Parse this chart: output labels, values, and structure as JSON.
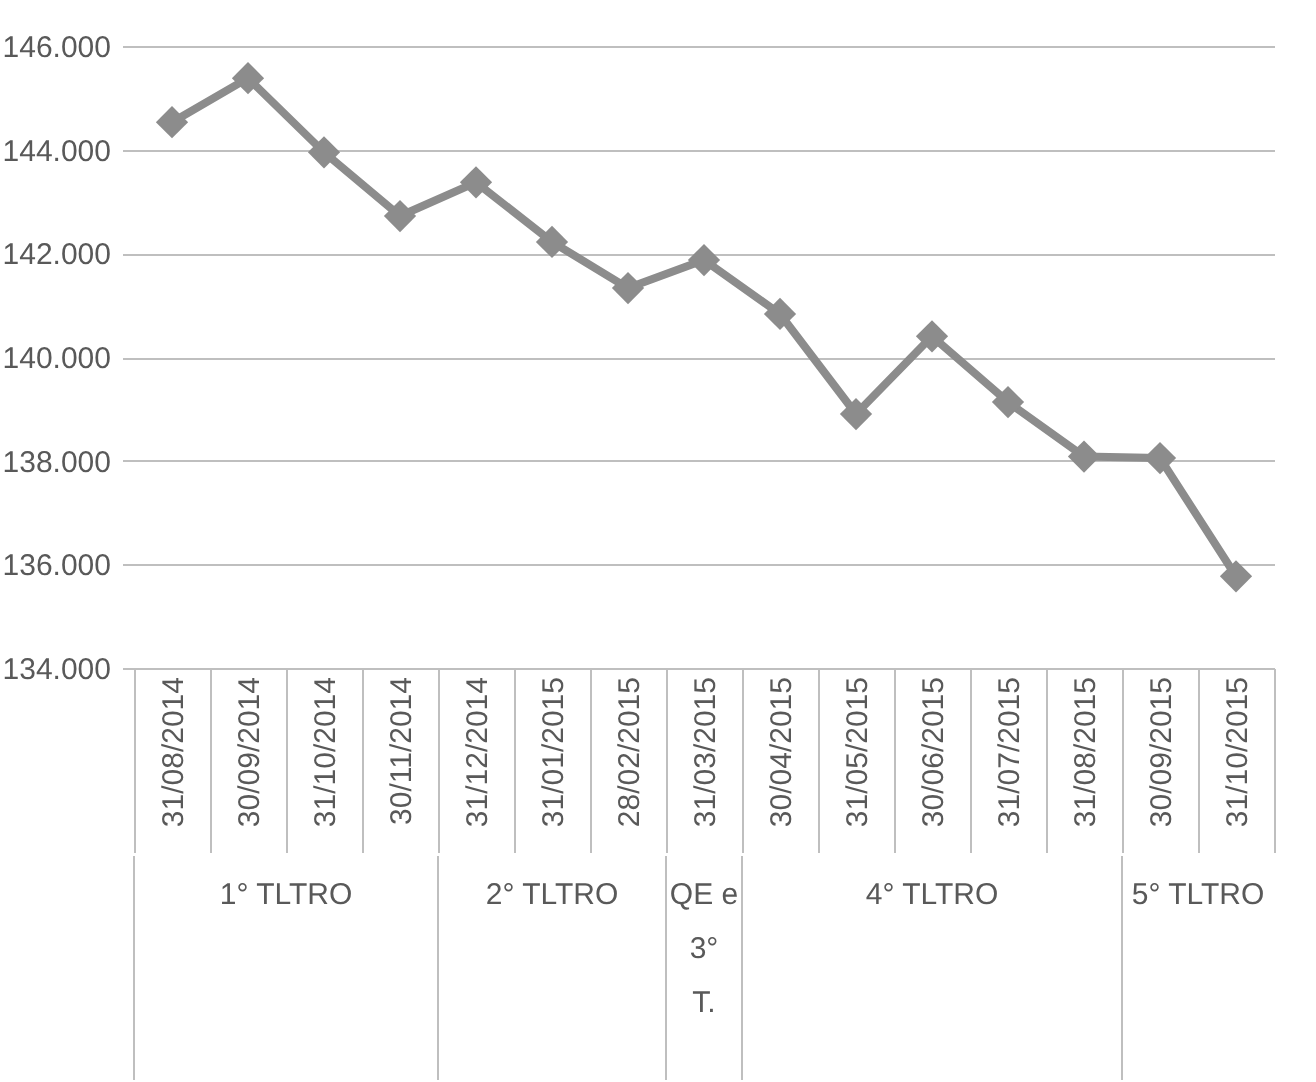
{
  "chart_data": {
    "type": "line",
    "categories": [
      "31/08/2014",
      "30/09/2014",
      "31/10/2014",
      "30/11/2014",
      "31/12/2014",
      "31/01/2015",
      "28/02/2015",
      "31/03/2015",
      "30/04/2015",
      "31/05/2015",
      "30/06/2015",
      "31/07/2015",
      "31/08/2015",
      "30/09/2015",
      "31/10/2015"
    ],
    "series": [
      {
        "color": "#8c8c8c",
        "values": [
          144530,
          145380,
          143950,
          142720,
          143370,
          142220,
          141330,
          141870,
          140830,
          138900,
          140400,
          139130,
          138080,
          138050,
          135770
        ]
      }
    ],
    "ylim": [
      134000,
      146000
    ],
    "yticks": [
      {
        "value": 134000,
        "label": "134.000"
      },
      {
        "value": 136000,
        "label": "136.000"
      },
      {
        "value": 138000,
        "label": "138.000"
      },
      {
        "value": 140000,
        "label": "140.000"
      },
      {
        "value": 142000,
        "label": "142.000"
      },
      {
        "value": 144000,
        "label": "144.000"
      },
      {
        "value": 146000,
        "label": "146.000"
      }
    ],
    "grid": "y",
    "marker": "diamond",
    "line_style": "solid",
    "annotations": [
      "1° TLTRO",
      "2° TLTRO",
      "QE e 3° T.",
      "4° TLTRO",
      "5° TLTRO"
    ]
  }
}
